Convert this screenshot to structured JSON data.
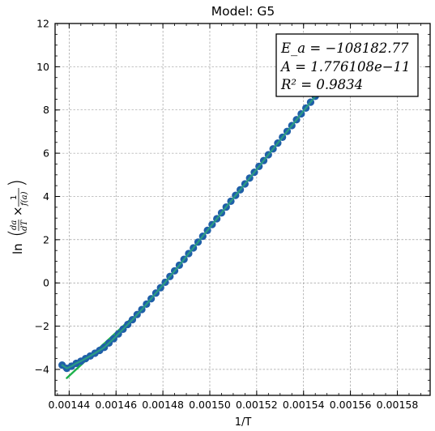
{
  "chart_data": {
    "type": "scatter",
    "title": "Model: G5",
    "xlabel": "1/T",
    "ylabel": "ln(da/dT × 1/f(a))",
    "xlim": [
      0.001434,
      0.001594
    ],
    "ylim": [
      -5.2,
      12
    ],
    "xticks": [
      0.00144,
      0.00146,
      0.00148,
      0.0015,
      0.00152,
      0.00154,
      0.00156,
      0.00158
    ],
    "xtick_labels": [
      "0.00144",
      "0.00146",
      "0.00148",
      "0.00150",
      "0.00152",
      "0.00154",
      "0.00156",
      "0.00158"
    ],
    "yticks": [
      -4,
      -2,
      0,
      2,
      4,
      6,
      8,
      10,
      12
    ],
    "ytick_labels": [
      "−4",
      "−2",
      "0",
      "2",
      "4",
      "6",
      "8",
      "10",
      "12"
    ],
    "grid": true,
    "series": [
      {
        "kind": "points",
        "color": "#1f5fa8",
        "x": [
          0.001437,
          0.001439,
          0.001441,
          0.001443,
          0.001445,
          0.001447,
          0.001449,
          0.001451,
          0.001453,
          0.001455,
          0.001457,
          0.001459,
          0.001461,
          0.001463,
          0.001465,
          0.001467,
          0.001469,
          0.001471,
          0.001473,
          0.001475,
          0.001477,
          0.001479,
          0.001481,
          0.001483,
          0.001485,
          0.001487,
          0.001489,
          0.001491,
          0.001493,
          0.001495,
          0.001497,
          0.001499,
          0.001501,
          0.001503,
          0.001505,
          0.001507,
          0.001509,
          0.001511,
          0.001513,
          0.001515,
          0.001517,
          0.001519,
          0.001521,
          0.001523,
          0.001525,
          0.001527,
          0.001529,
          0.001531,
          0.001533,
          0.001535,
          0.001537,
          0.001539,
          0.001541,
          0.001543,
          0.001545,
          0.001547,
          0.001549,
          0.001551,
          0.001553,
          0.001555,
          0.001557,
          0.001559
        ],
        "y": [
          -3.8,
          -3.95,
          -3.85,
          -3.72,
          -3.62,
          -3.5,
          -3.38,
          -3.25,
          -3.12,
          -2.98,
          -2.78,
          -2.58,
          -2.36,
          -2.14,
          -1.92,
          -1.7,
          -1.46,
          -1.23,
          -0.98,
          -0.73,
          -0.47,
          -0.22,
          0.03,
          0.3,
          0.56,
          0.82,
          1.09,
          1.36,
          1.62,
          1.89,
          2.16,
          2.43,
          2.7,
          2.97,
          3.24,
          3.51,
          3.78,
          4.05,
          4.31,
          4.58,
          4.85,
          5.12,
          5.39,
          5.66,
          5.93,
          6.2,
          6.47,
          6.74,
          7.01,
          7.28,
          7.55,
          7.82,
          8.09,
          8.36,
          8.63,
          8.9,
          9.17,
          9.44,
          9.71,
          9.98,
          10.25,
          10.52
        ]
      },
      {
        "kind": "fit-line",
        "color": "#1db14b",
        "x": [
          0.001439,
          0.001467
        ],
        "y": [
          -4.4,
          -1.6
        ]
      }
    ],
    "annotation": {
      "lines": [
        "E_a = −108182.77",
        "A = 1.776108e−11",
        "R² = 0.9834"
      ],
      "position": "top-right"
    }
  }
}
